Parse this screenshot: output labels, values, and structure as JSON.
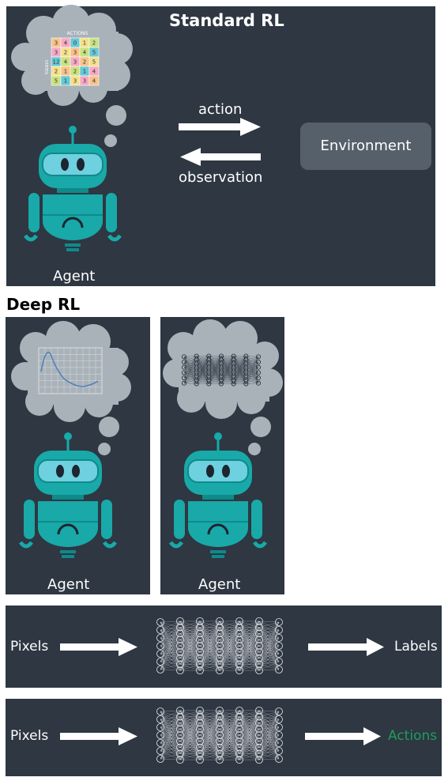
{
  "standard": {
    "title": "Standard RL",
    "table_header": "ACTIONS",
    "table_side": "STATES",
    "table": [
      [
        "3",
        "4",
        "0",
        "1",
        "2"
      ],
      [
        "3",
        "2",
        "3",
        "4",
        "5"
      ],
      [
        "12",
        "4",
        "3",
        "2",
        "5"
      ],
      [
        "2",
        "1",
        "2",
        "1",
        "4"
      ],
      [
        "5",
        "1",
        "3",
        "3",
        "4"
      ]
    ],
    "action_label": "action",
    "observation_label": "observation",
    "environment_label": "Environment",
    "agent_label": "Agent"
  },
  "deep": {
    "title": "Deep RL",
    "agent_left_label": "Agent",
    "agent_right_label": "Agent"
  },
  "pipeline_top": {
    "input_label": "Pixels",
    "output_label": "Labels"
  },
  "pipeline_bottom": {
    "input_label": "Pixels",
    "output_label": "Actions"
  },
  "colors": {
    "panel": "#2e3742",
    "robot": "#18a9a8",
    "robot_dark": "#0f8a8a",
    "screen": "#6fd0df",
    "cloud": "#a9b2b9",
    "environment_box": "#56606a",
    "actions_text": "#1e9e5a",
    "table_cells": [
      "#f7c38a",
      "#f6a9c5",
      "#66c9d6",
      "#f5e08a",
      "#c9e27f"
    ]
  }
}
